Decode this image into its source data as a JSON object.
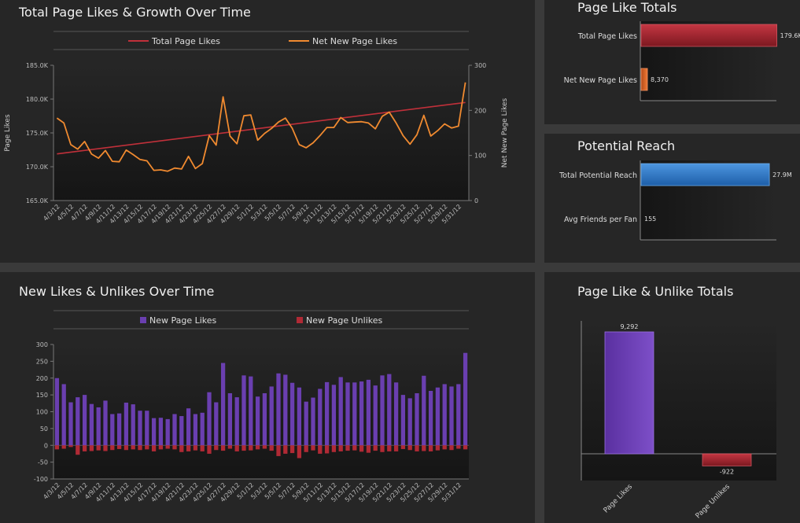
{
  "colors": {
    "total_line": "#c0303a",
    "net_line": "#f08a30",
    "new_likes": "#6a3fb0",
    "new_unlikes": "#b02a35",
    "reach_bar": "#2e78c8",
    "totals_bar": "#a3222d",
    "net_bar": "#e0652a"
  },
  "chart_data": [
    {
      "type": "line",
      "title": "Total Page Likes & Growth Over Time",
      "ylabel": "Page Likes",
      "y2label": "Net New Page Likes",
      "ylim": [
        165000,
        185000
      ],
      "y2lim": [
        0,
        300
      ],
      "yticks": [
        "165.0K",
        "170.0K",
        "175.0K",
        "180.0K",
        "185.0K"
      ],
      "y2ticks": [
        "0",
        "100",
        "200",
        "300"
      ],
      "xtick_labels": [
        "4/3/12",
        "4/5/12",
        "4/7/12",
        "4/9/12",
        "4/11/12",
        "4/13/12",
        "4/15/12",
        "4/17/12",
        "4/19/12",
        "4/21/12",
        "4/23/12",
        "4/25/12",
        "4/27/12",
        "4/29/12",
        "5/1/12",
        "5/3/12",
        "5/5/12",
        "5/7/12",
        "5/9/12",
        "5/11/12",
        "5/13/12",
        "5/15/12",
        "5/17/12",
        "5/19/12",
        "5/21/12",
        "5/23/12",
        "5/25/12",
        "5/27/12",
        "5/29/12",
        "5/31/12"
      ],
      "series": [
        {
          "name": "Total Page Likes",
          "axis": "left",
          "start": 171900,
          "end": 179500
        },
        {
          "name": "Net New Page Likes",
          "axis": "right",
          "values": [
            183,
            172,
            124,
            114,
            131,
            103,
            94,
            111,
            87,
            86,
            112,
            102,
            91,
            88,
            67,
            68,
            65,
            72,
            70,
            98,
            71,
            82,
            144,
            123,
            230,
            143,
            126,
            188,
            190,
            134,
            149,
            160,
            174,
            183,
            160,
            124,
            117,
            128,
            144,
            162,
            162,
            184,
            173,
            174,
            175,
            172,
            159,
            187,
            196,
            172,
            144,
            125,
            146,
            189,
            143,
            155,
            170,
            161,
            165,
            262
          ]
        }
      ]
    },
    {
      "type": "bar",
      "title": "Page Like Totals",
      "orientation": "horizontal",
      "categories": [
        "Total Page Likes",
        "Net New Page Likes"
      ],
      "values": [
        179600,
        8370
      ],
      "labels": [
        "179.6K",
        "8,370"
      ]
    },
    {
      "type": "bar",
      "title": "Potential Reach",
      "orientation": "horizontal",
      "categories": [
        "Total Potential Reach",
        "Avg Friends per Fan"
      ],
      "values": [
        27900000,
        155
      ],
      "labels": [
        "27.9M",
        "155"
      ]
    },
    {
      "type": "bar",
      "title": "New Likes & Unlikes Over Time",
      "ylim": [
        -100,
        300
      ],
      "yticks": [
        "-100",
        "-50",
        "0",
        "50",
        "100",
        "150",
        "200",
        "250",
        "300"
      ],
      "xtick_labels": [
        "4/3/12",
        "4/5/12",
        "4/7/12",
        "4/9/12",
        "4/11/12",
        "4/13/12",
        "4/15/12",
        "4/17/12",
        "4/19/12",
        "4/21/12",
        "4/23/12",
        "4/25/12",
        "4/27/12",
        "4/29/12",
        "5/1/12",
        "5/3/12",
        "5/5/12",
        "5/7/12",
        "5/9/12",
        "5/11/12",
        "5/13/12",
        "5/15/12",
        "5/17/12",
        "5/19/12",
        "5/21/12",
        "5/23/12",
        "5/25/12",
        "5/27/12",
        "5/29/12",
        "5/31/12"
      ],
      "series": [
        {
          "name": "New Page Likes",
          "values": [
            200,
            182,
            128,
            143,
            150,
            123,
            113,
            133,
            93,
            95,
            127,
            122,
            103,
            103,
            81,
            82,
            78,
            93,
            87,
            110,
            93,
            97,
            158,
            128,
            245,
            155,
            143,
            208,
            205,
            145,
            155,
            175,
            214,
            210,
            186,
            172,
            130,
            142,
            168,
            188,
            180,
            203,
            187,
            187,
            190,
            195,
            178,
            208,
            212,
            187,
            150,
            140,
            155,
            207,
            162,
            172,
            182,
            175,
            182,
            275
          ]
        },
        {
          "name": "New Page Unlikes",
          "values": [
            -12,
            -10,
            -5,
            -28,
            -18,
            -17,
            -15,
            -17,
            -14,
            -11,
            -14,
            -12,
            -14,
            -12,
            -18,
            -12,
            -10,
            -12,
            -20,
            -18,
            -15,
            -18,
            -25,
            -14,
            -16,
            -10,
            -18,
            -16,
            -15,
            -12,
            -10,
            -16,
            -32,
            -25,
            -23,
            -38,
            -20,
            -15,
            -25,
            -24,
            -20,
            -18,
            -16,
            -15,
            -19,
            -22,
            -16,
            -20,
            -18,
            -18,
            -11,
            -14,
            -18,
            -17,
            -18,
            -15,
            -12,
            -14,
            -10,
            -12
          ]
        }
      ]
    },
    {
      "type": "bar",
      "title": "Page Like & Unlike Totals",
      "categories": [
        "Page Likes",
        "Page Unlikes"
      ],
      "values": [
        9292,
        -922
      ],
      "labels": [
        "9,292",
        "-922"
      ]
    }
  ]
}
